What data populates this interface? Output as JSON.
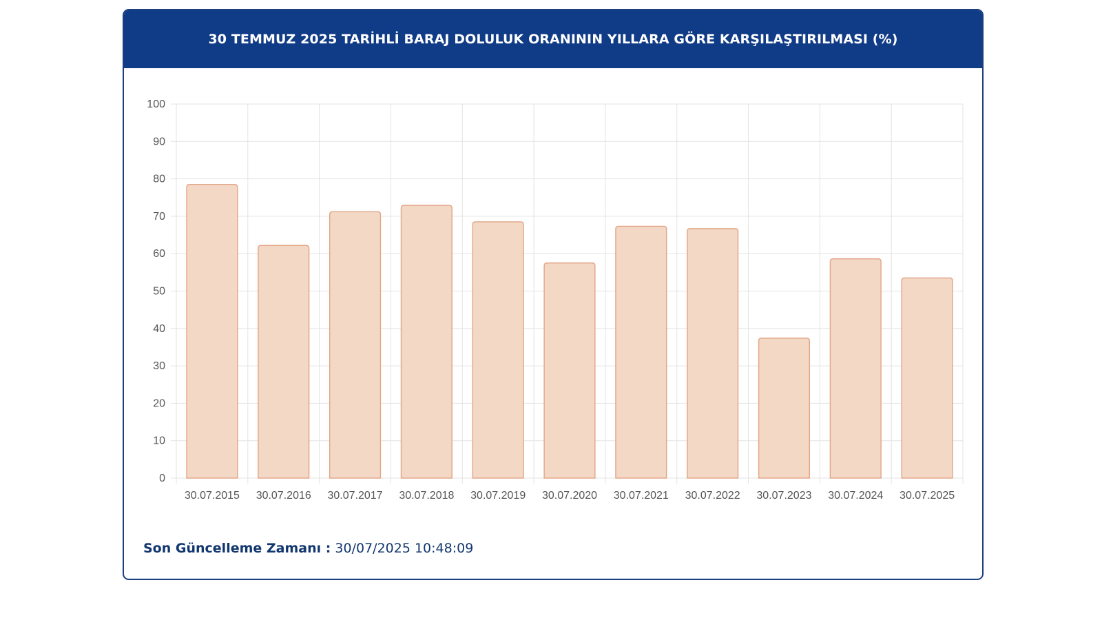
{
  "header": {
    "title": "30 TEMMUZ 2025 TARİHLİ BARAJ DOLULUK ORANININ YILLARA GÖRE KARŞILAŞTIRILMASI (%)"
  },
  "footer": {
    "label": "Son Güncelleme Zamanı :",
    "value": "30/07/2025 10:48:09"
  },
  "colors": {
    "header_bg": "#103b86",
    "bar_fill": "#f3d8c6",
    "bar_stroke": "#e3a88a",
    "grid": "#e3e3e3",
    "text": "#555555"
  },
  "chart_data": {
    "type": "bar",
    "title": "30 TEMMUZ 2025 TARİHLİ BARAJ DOLULUK ORANININ YILLARA GÖRE KARŞILAŞTIRILMASI (%)",
    "categories": [
      "30.07.2015",
      "30.07.2016",
      "30.07.2017",
      "30.07.2018",
      "30.07.2019",
      "30.07.2020",
      "30.07.2021",
      "30.07.2022",
      "30.07.2023",
      "30.07.2024",
      "30.07.2025"
    ],
    "values": [
      78.5,
      62.2,
      71.2,
      72.9,
      68.5,
      57.5,
      67.3,
      66.7,
      37.4,
      58.6,
      53.5
    ],
    "yticks": [
      "0",
      "10",
      "20",
      "30",
      "40",
      "50",
      "60",
      "70",
      "80",
      "90",
      "100"
    ],
    "ylim": [
      0,
      100
    ],
    "xlabel": "",
    "ylabel": "",
    "grid": true,
    "legend": "none"
  }
}
